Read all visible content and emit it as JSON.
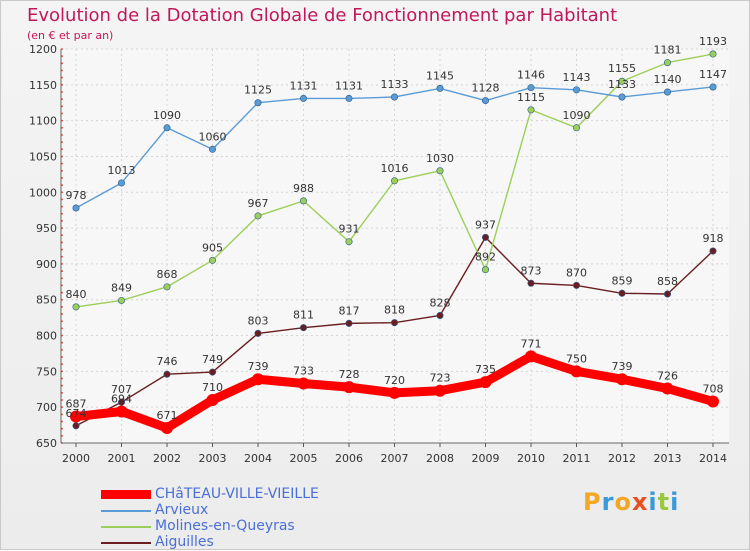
{
  "header": {
    "title": "Evolution de la Dotation Globale de Fonctionnement par Habitant",
    "subtitle": "(en € et par an)"
  },
  "logo": {
    "text": "Proxiti",
    "colors": [
      "#f5a623",
      "#3a9ad9",
      "#f5a623",
      "#e8501f",
      "#3a9ad9",
      "#9ac83c",
      "#3a9ad9"
    ]
  },
  "chart_data": {
    "type": "line",
    "x": [
      "2000",
      "2001",
      "2002",
      "2003",
      "2004",
      "2005",
      "2006",
      "2007",
      "2008",
      "2009",
      "2010",
      "2011",
      "2012",
      "2013",
      "2014"
    ],
    "ylim": [
      650,
      1200
    ],
    "yticks": [
      650,
      700,
      750,
      800,
      850,
      900,
      950,
      1000,
      1050,
      1100,
      1150,
      1200
    ],
    "grid": true,
    "legend_position": "bottom-left",
    "series": [
      {
        "name": "CHâTEAU-VILLE-VIEILLE",
        "color": "#ff0000",
        "emphasis": true,
        "values": [
          687,
          694,
          671,
          710,
          739,
          733,
          728,
          720,
          723,
          735,
          771,
          750,
          739,
          726,
          708
        ]
      },
      {
        "name": "Arvieux",
        "color": "#5b9bd5",
        "values": [
          978,
          1013,
          1090,
          1060,
          1125,
          1131,
          1131,
          1133,
          1145,
          1128,
          1146,
          1143,
          1133,
          1140,
          1147
        ]
      },
      {
        "name": "Molines-en-Queyras",
        "color": "#9ccf5a",
        "values": [
          840,
          849,
          868,
          905,
          967,
          988,
          931,
          1016,
          1030,
          892,
          1115,
          1090,
          1155,
          1181,
          1193
        ]
      },
      {
        "name": "Aiguilles",
        "color": "#6b1e22",
        "values": [
          674,
          707,
          746,
          749,
          803,
          811,
          817,
          818,
          828,
          937,
          873,
          870,
          859,
          858,
          918
        ]
      }
    ]
  }
}
